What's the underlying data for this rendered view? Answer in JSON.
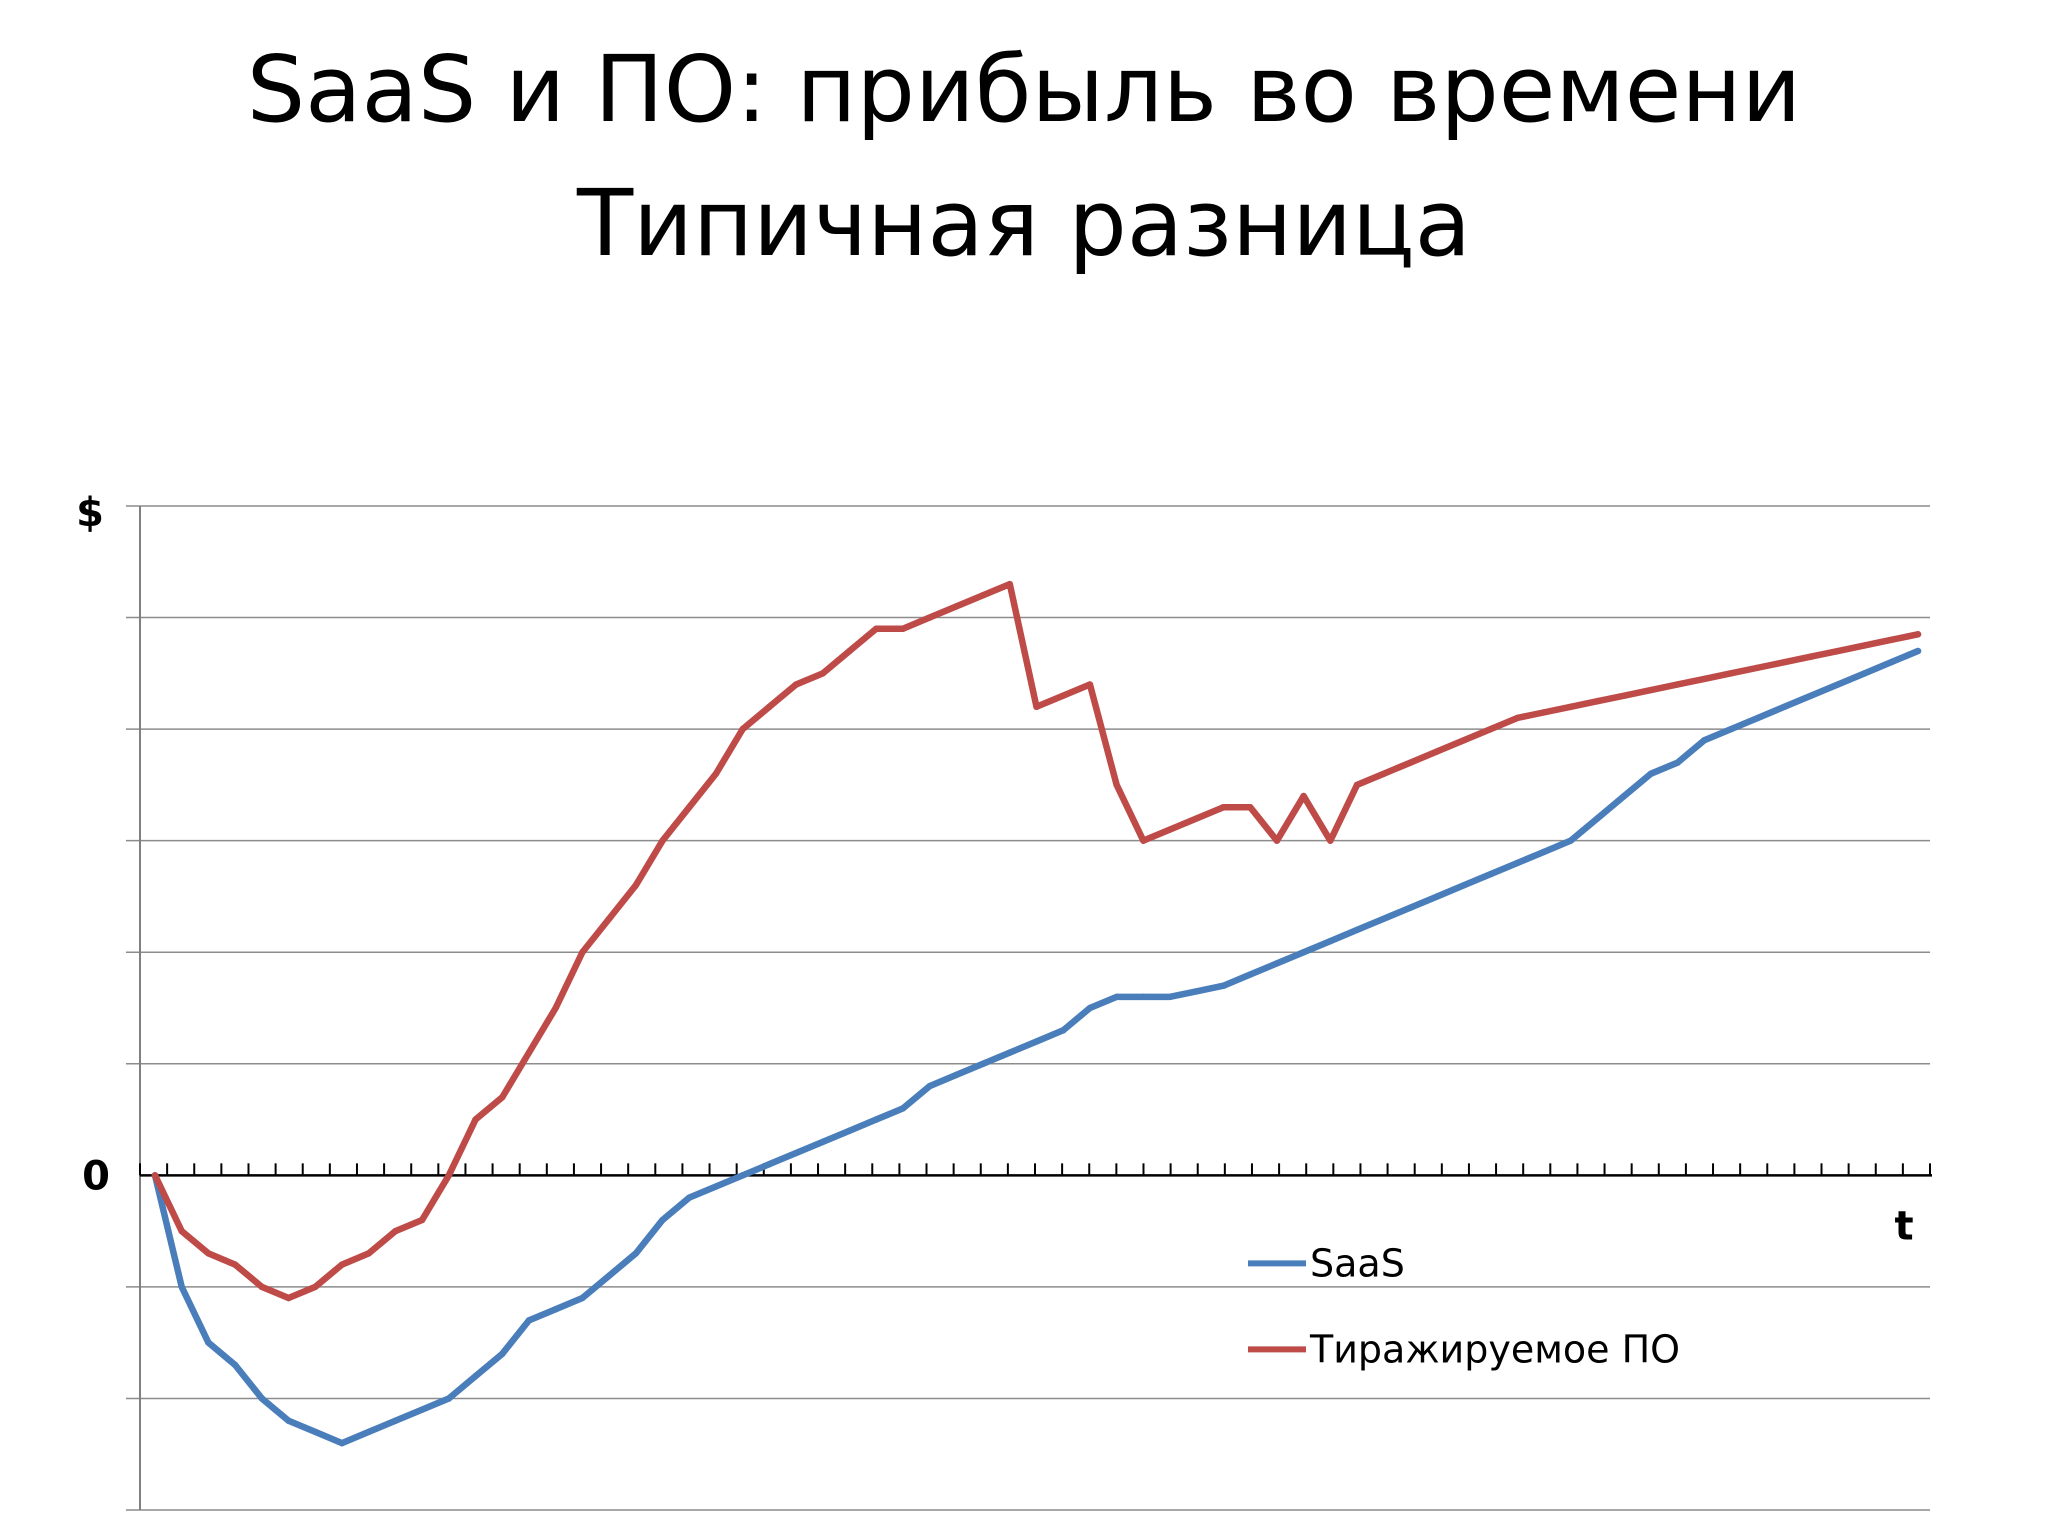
{
  "slide": {
    "title_line1": "SaaS и ПО: прибыль во времени",
    "title_line2": "Типичная разница"
  },
  "chart_data": {
    "type": "line",
    "ylabel": "$",
    "xlabel": "t",
    "zero_label": "0",
    "ylim": [
      -3,
      6
    ],
    "grid": true,
    "legend_position": "bottom-right inside plot",
    "x": [
      0,
      1,
      2,
      3,
      4,
      5,
      6,
      7,
      8,
      9,
      10,
      11,
      12,
      13,
      14,
      15,
      16,
      17,
      18,
      19,
      20,
      21,
      22,
      23,
      24,
      25,
      26,
      27,
      28,
      29,
      30,
      31,
      32,
      33,
      34,
      35,
      36,
      37,
      38,
      39,
      40,
      41,
      42,
      43,
      44,
      45,
      46,
      47,
      48,
      49,
      50,
      51,
      52,
      53,
      54,
      55,
      56,
      57,
      58,
      59,
      60,
      61,
      62,
      63,
      64,
      65,
      66
    ],
    "series": [
      {
        "name": "SaaS",
        "color": "#4a7ebb",
        "values": [
          0,
          -1.0,
          -1.5,
          -1.7,
          -2.0,
          -2.2,
          -2.3,
          -2.4,
          -2.3,
          -2.2,
          -2.1,
          -2.0,
          -1.8,
          -1.6,
          -1.3,
          -1.2,
          -1.1,
          -0.9,
          -0.7,
          -0.4,
          -0.2,
          -0.1,
          0.0,
          0.1,
          0.2,
          0.3,
          0.4,
          0.5,
          0.6,
          0.8,
          0.9,
          1.0,
          1.1,
          1.2,
          1.3,
          1.5,
          1.6,
          1.6,
          1.6,
          1.65,
          1.7,
          1.8,
          1.9,
          2.0,
          2.1,
          2.2,
          2.3,
          2.4,
          2.5,
          2.6,
          2.7,
          2.8,
          2.9,
          3.0,
          3.2,
          3.4,
          3.6,
          3.7,
          3.9,
          4.0,
          4.1,
          4.2,
          4.3,
          4.4,
          4.5,
          4.6,
          4.7
        ]
      },
      {
        "name": "Тиражируемое ПО",
        "color": "#be4b48",
        "values": [
          0,
          -0.5,
          -0.7,
          -0.8,
          -1.0,
          -1.1,
          -1.0,
          -0.8,
          -0.7,
          -0.5,
          -0.4,
          0.0,
          0.5,
          0.7,
          1.1,
          1.5,
          2.0,
          2.3,
          2.6,
          3.0,
          3.3,
          3.6,
          4.0,
          4.2,
          4.4,
          4.5,
          4.7,
          4.9,
          4.9,
          5.0,
          5.1,
          5.2,
          5.3,
          4.2,
          4.3,
          4.4,
          3.5,
          3.0,
          3.1,
          3.2,
          3.3,
          3.3,
          3.0,
          3.4,
          3.0,
          3.5,
          3.6,
          3.7,
          3.8,
          3.9,
          4.0,
          4.1,
          4.15,
          4.2,
          4.25,
          4.3,
          4.35,
          4.4,
          4.45,
          4.5,
          4.55,
          4.6,
          4.65,
          4.7,
          4.75,
          4.8,
          4.85
        ]
      }
    ]
  }
}
